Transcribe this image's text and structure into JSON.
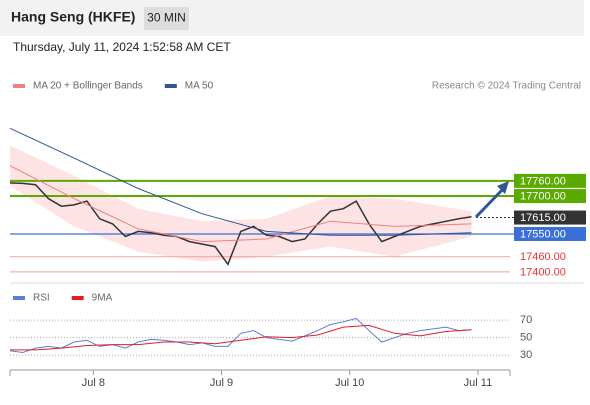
{
  "header": {
    "title": "Hang Seng (HKFE)",
    "interval": "30 MIN",
    "timestamp": "Thursday, July 11, 2024 1:52:58 AM CET",
    "credit": "Research © 2024 Trading Central"
  },
  "chart_data": [
    {
      "type": "line",
      "xlim": [
        -13,
        65
      ],
      "ylim": [
        17360,
        18080
      ],
      "xticks": [
        {
          "value": 0,
          "label": "Jul 8"
        },
        {
          "value": 20,
          "label": "Jul 9"
        },
        {
          "value": 40,
          "label": "Jul 10"
        },
        {
          "value": 60,
          "label": "Jul 11"
        }
      ],
      "series": [
        {
          "color": "#333333",
          "x": [
            -13,
            -11,
            -9,
            -7,
            -5,
            -3,
            -1,
            1,
            3,
            5,
            7,
            9,
            11,
            13,
            15,
            17,
            19,
            21,
            23,
            25,
            27,
            29,
            31,
            33,
            35,
            37,
            39,
            41,
            43,
            45,
            47,
            49,
            51,
            53,
            55,
            57,
            59
          ],
          "values": [
            17752,
            17750,
            17745,
            17690,
            17660,
            17665,
            17680,
            17610,
            17590,
            17540,
            17560,
            17555,
            17545,
            17540,
            17520,
            17510,
            17500,
            17430,
            17560,
            17580,
            17545,
            17540,
            17520,
            17530,
            17590,
            17640,
            17650,
            17680,
            17590,
            17520,
            17540,
            17560,
            17580,
            17590,
            17600,
            17610,
            17618
          ]
        },
        {
          "name": "MA 20 + Bollinger Bands",
          "color": "#f08080",
          "band_color": "#fde3e3",
          "x": [
            -13,
            -3,
            7,
            17,
            27,
            37,
            47,
            59
          ],
          "values": [
            17820,
            17690,
            17570,
            17520,
            17530,
            17600,
            17580,
            17590
          ],
          "band_upper": [
            17900,
            17780,
            17650,
            17600,
            17610,
            17700,
            17690,
            17640
          ],
          "band_lower": [
            17740,
            17580,
            17480,
            17440,
            17460,
            17500,
            17460,
            17540
          ]
        },
        {
          "name": "MA 50",
          "color": "#2f5597",
          "x": [
            -13,
            -3,
            7,
            17,
            27,
            37,
            47,
            59
          ],
          "values": [
            17968,
            17850,
            17730,
            17630,
            17560,
            17545,
            17545,
            17555
          ]
        }
      ],
      "levels": [
        {
          "value": 17760,
          "label": "17760.00",
          "color": "#5aaa00",
          "style": "box"
        },
        {
          "value": 17700,
          "label": "17700.00",
          "color": "#5aaa00",
          "style": "box"
        },
        {
          "value": 17615,
          "label": "17615.00",
          "color": "#333333",
          "style": "current"
        },
        {
          "value": 17550,
          "label": "17550.00",
          "color": "#3a6fd8",
          "style": "box"
        },
        {
          "value": 17460,
          "label": "17460.00",
          "color": "#e33",
          "style": "text"
        },
        {
          "value": 17400,
          "label": "17400.00",
          "color": "#e33",
          "style": "text"
        }
      ]
    },
    {
      "type": "line",
      "xlim": [
        -13,
        65
      ],
      "ylim": [
        13,
        93
      ],
      "yticks": [
        30,
        50,
        70
      ],
      "series": [
        {
          "name": "RSI",
          "color": "#5b7fd6",
          "x": [
            -13,
            -11,
            -9,
            -7,
            -5,
            -3,
            -1,
            1,
            3,
            5,
            7,
            9,
            11,
            13,
            15,
            17,
            19,
            21,
            23,
            25,
            27,
            29,
            31,
            33,
            35,
            37,
            39,
            41,
            43,
            45,
            47,
            49,
            51,
            53,
            55,
            57,
            59
          ],
          "values": [
            35,
            33,
            38,
            40,
            38,
            45,
            47,
            40,
            42,
            38,
            45,
            48,
            47,
            45,
            42,
            44,
            40,
            40,
            55,
            58,
            50,
            48,
            46,
            52,
            58,
            65,
            68,
            72,
            58,
            45,
            50,
            55,
            58,
            60,
            62,
            58,
            59
          ]
        },
        {
          "name": "9MA",
          "color": "#e02020",
          "x": [
            -13,
            -9,
            -5,
            -1,
            3,
            7,
            11,
            15,
            19,
            23,
            27,
            31,
            35,
            39,
            43,
            47,
            51,
            55,
            59
          ],
          "values": [
            36,
            36,
            38,
            41,
            42,
            42,
            45,
            45,
            43,
            47,
            51,
            50,
            53,
            62,
            64,
            55,
            52,
            57,
            59
          ]
        }
      ]
    }
  ]
}
